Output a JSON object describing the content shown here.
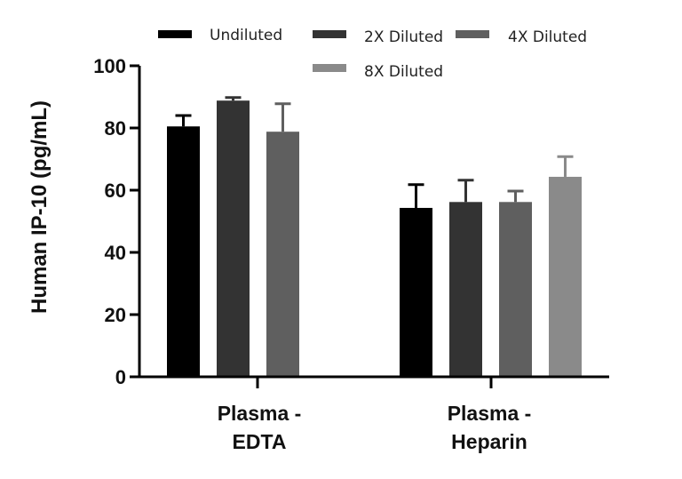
{
  "chart_data": {
    "type": "bar",
    "title": "",
    "xlabel": "",
    "ylabel": "Human IP-10 (pg/mL)",
    "ylim": [
      0,
      100
    ],
    "yticks": [
      "0",
      "20",
      "40",
      "60",
      "80",
      "100"
    ],
    "categories": [
      {
        "line1": "Plasma -",
        "line2": "EDTA"
      },
      {
        "line1": "Plasma -",
        "line2": "Heparin"
      }
    ],
    "series": [
      {
        "name": "Undiluted",
        "color": "#000000",
        "values": [
          80.5,
          54.3
        ],
        "errors": [
          3.5,
          7.5
        ]
      },
      {
        "name": "2X Diluted",
        "color": "#333333",
        "values": [
          88.8,
          56.2
        ],
        "errors": [
          1.0,
          7.0
        ]
      },
      {
        "name": "4X Diluted",
        "color": "#5f5f5f",
        "values": [
          78.8,
          56.2
        ],
        "errors": [
          9.0,
          3.5
        ]
      },
      {
        "name": "8X Diluted",
        "color": "#8a8a8a",
        "values": [
          null,
          64.3
        ],
        "errors": [
          null,
          6.5
        ]
      }
    ],
    "grid": false,
    "legend_position": "top"
  }
}
